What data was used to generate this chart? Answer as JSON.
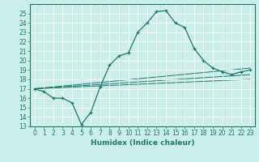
{
  "title": "",
  "xlabel": "Humidex (Indice chaleur)",
  "ylabel": "",
  "background_color": "#cceee8",
  "grid_color": "#ffffff",
  "line_color": "#1a7a6e",
  "xlim": [
    -0.5,
    23.5
  ],
  "ylim": [
    13,
    26
  ],
  "yticks": [
    13,
    14,
    15,
    16,
    17,
    18,
    19,
    20,
    21,
    22,
    23,
    24,
    25
  ],
  "xticks": [
    0,
    1,
    2,
    3,
    4,
    5,
    6,
    7,
    8,
    9,
    10,
    11,
    12,
    13,
    14,
    15,
    16,
    17,
    18,
    19,
    20,
    21,
    22,
    23
  ],
  "main_line": {
    "x": [
      0,
      1,
      2,
      3,
      4,
      5,
      6,
      7,
      8,
      9,
      10,
      11,
      12,
      13,
      14,
      15,
      16,
      17,
      18,
      19,
      20,
      21,
      22,
      23
    ],
    "y": [
      17.0,
      16.7,
      16.0,
      16.0,
      15.5,
      13.2,
      14.5,
      17.2,
      19.5,
      20.5,
      20.8,
      23.0,
      24.0,
      25.2,
      25.3,
      24.0,
      23.5,
      21.3,
      20.0,
      19.2,
      18.8,
      18.5,
      18.8,
      19.0
    ]
  },
  "trend_lines": [
    {
      "x": [
        0,
        23
      ],
      "y": [
        17.0,
        19.2
      ]
    },
    {
      "x": [
        0,
        23
      ],
      "y": [
        17.0,
        18.5
      ]
    },
    {
      "x": [
        0,
        23
      ],
      "y": [
        17.0,
        18.0
      ]
    }
  ]
}
